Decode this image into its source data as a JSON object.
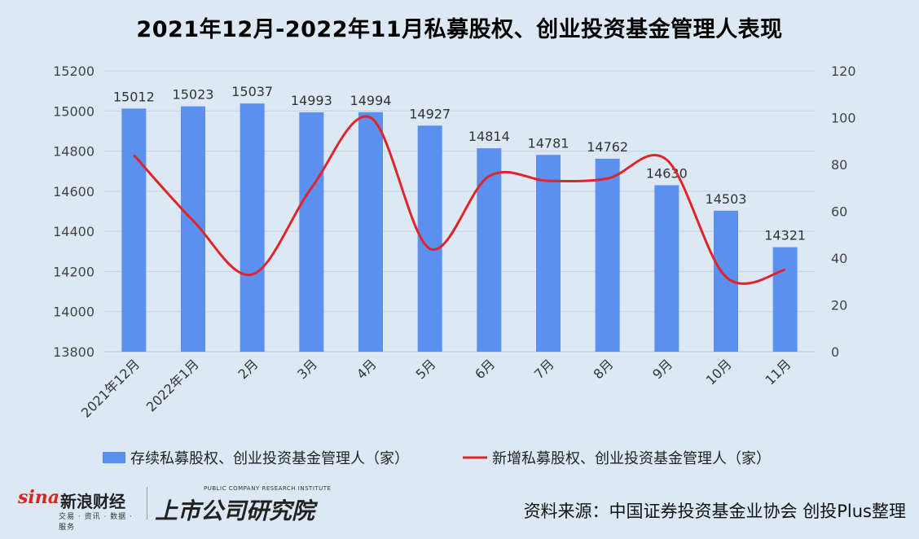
{
  "title": "2021年12月-2022年11月私募股权、创业投资基金管理人表现",
  "source": "资料来源：中国证券投资基金业协会 创投Plus整理",
  "logos": {
    "sina_brand": "sina",
    "sina_name": "新浪财经",
    "sina_sub": "交易 · 资讯 · 数据 · 服务",
    "inst_en": "PUBLIC COMPANY RESEARCH INSTITUTE",
    "inst_cn": "上市公司研究院"
  },
  "colors": {
    "bar": "#5b8ff0",
    "line": "#e0242a",
    "background": "#dce9f5"
  },
  "chart_data": {
    "type": "bar",
    "categories": [
      "2021年12月",
      "2022年1月",
      "2月",
      "3月",
      "4月",
      "5月",
      "6月",
      "7月",
      "8月",
      "9月",
      "10月",
      "11月"
    ],
    "series": [
      {
        "name": "存续私募股权、创业投资基金管理人（家）",
        "type": "bar",
        "axis": "left",
        "values": [
          15012,
          15023,
          15037,
          14993,
          14994,
          14927,
          14814,
          14781,
          14762,
          14630,
          14503,
          14321
        ]
      },
      {
        "name": "新增私募股权、创业投资基金管理人（家）",
        "type": "line",
        "axis": "right",
        "values": [
          84,
          56,
          33,
          70,
          100,
          44,
          75,
          73,
          74,
          82,
          32,
          35
        ]
      }
    ],
    "ylim_left": [
      13800,
      15200
    ],
    "yticks_left": [
      13800,
      14000,
      14200,
      14400,
      14600,
      14800,
      15000,
      15200
    ],
    "ylim_right": [
      0,
      120
    ],
    "yticks_right": [
      0,
      20,
      40,
      60,
      80,
      100,
      120
    ],
    "grid": true,
    "legend": "bottom"
  }
}
